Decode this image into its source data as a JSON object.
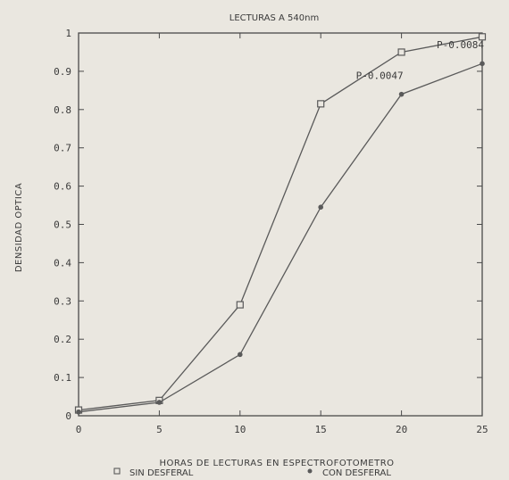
{
  "chart_data": {
    "type": "line",
    "title": "LECTURAS A 540nm",
    "xlabel": "HORAS DE LECTURAS EN ESPECTROFOTOMETRO",
    "ylabel": "DENSIDAD OPTICA",
    "xlim": [
      0,
      25
    ],
    "ylim": [
      0,
      1
    ],
    "x_ticks": [
      "0",
      "5",
      "10",
      "15",
      "20",
      "25"
    ],
    "y_ticks": [
      "0",
      "0.1",
      "0.2",
      "0.3",
      "0.4",
      "0.5",
      "0.6",
      "0.7",
      "0.8",
      "0.9",
      "1"
    ],
    "grid": false,
    "legend_position": "bottom",
    "series": [
      {
        "name": "SIN DESFERAL",
        "marker": "square",
        "color": "#5a5a5a",
        "x": [
          0,
          5,
          10,
          15,
          20,
          25
        ],
        "values": [
          0.015,
          0.04,
          0.29,
          0.815,
          0.95,
          0.99
        ]
      },
      {
        "name": "CON DESFERAL",
        "marker": "dot",
        "color": "#5a5a5a",
        "x": [
          0,
          5,
          10,
          15,
          20,
          25
        ],
        "values": [
          0.01,
          0.035,
          0.16,
          0.545,
          0.84,
          0.92
        ]
      }
    ],
    "annotations": [
      {
        "text": "P-0.0047",
        "x": 20,
        "y": 0.88
      },
      {
        "text": "P-0.0084",
        "x": 25,
        "y": 0.96
      }
    ]
  }
}
